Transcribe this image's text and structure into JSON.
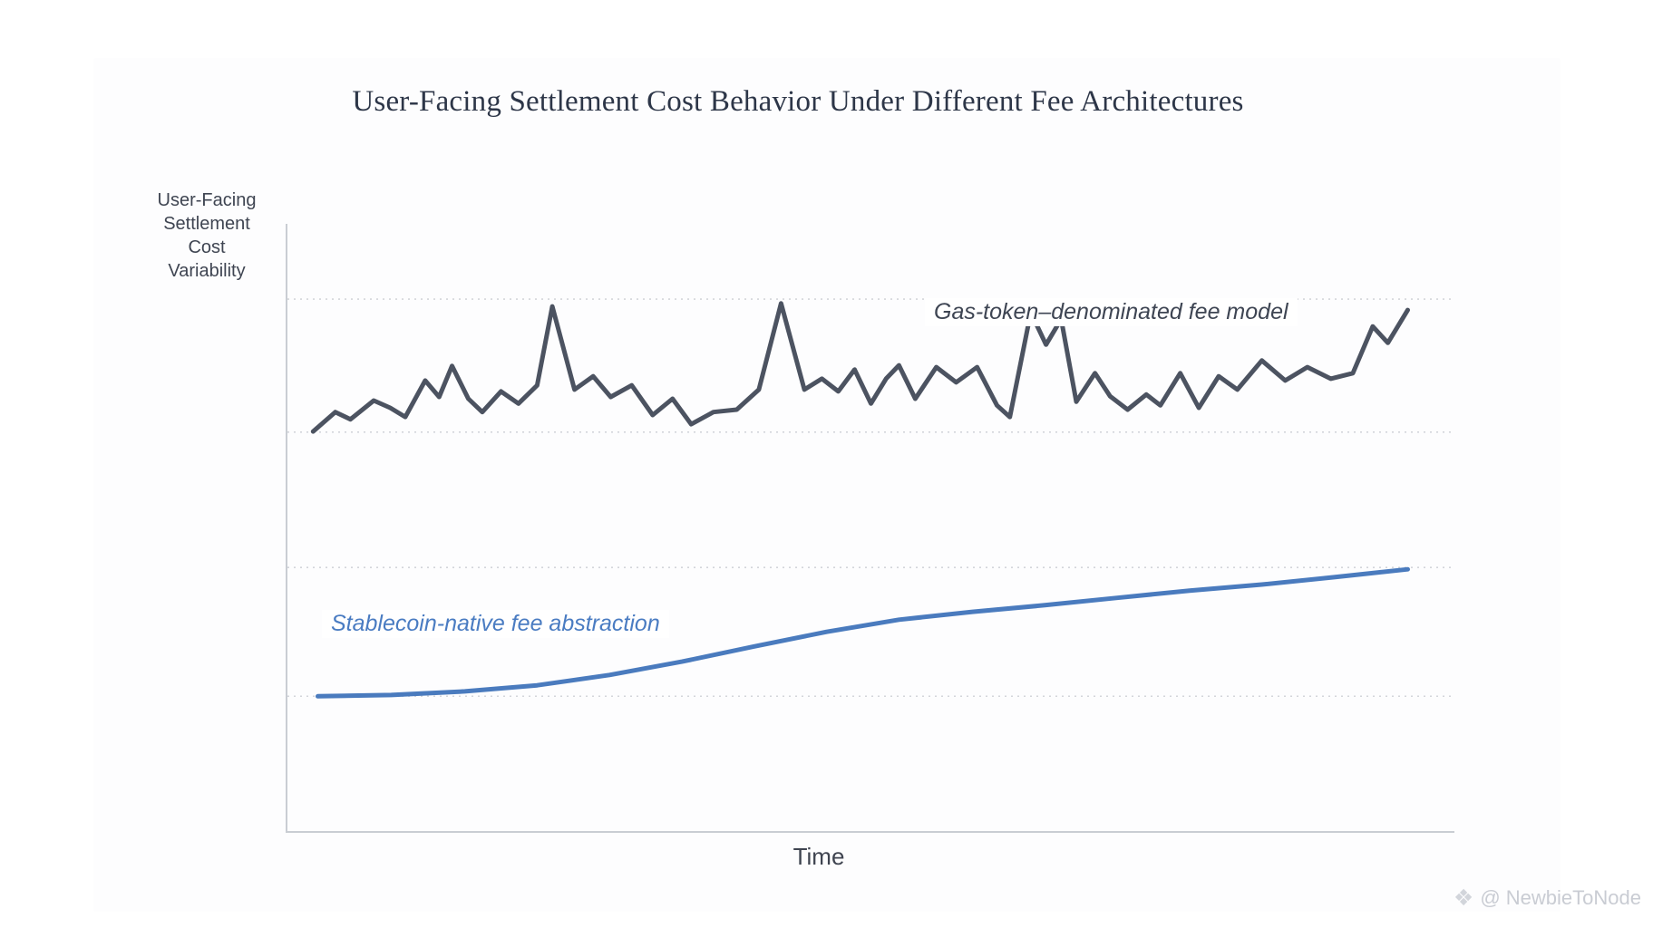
{
  "page": {
    "background_color": "#ffffff"
  },
  "chart_data": {
    "type": "line",
    "title": "User-Facing Settlement Cost Behavior Under Different Fee Architectures",
    "xlabel": "Time",
    "ylabel": "User-Facing Settlement Cost Variability",
    "ylabel_lines": [
      "User-Facing",
      "Settlement",
      "Cost",
      "Variability"
    ],
    "xlim": [
      0,
      100
    ],
    "ylim": [
      0,
      100
    ],
    "x_ticks": [],
    "y_ticks": [],
    "grid": {
      "style": "dotted",
      "color": "#d3d5da",
      "y_values": [
        22.2,
        43.4,
        65.7,
        87.6
      ]
    },
    "legend_position": "inline-annotations",
    "axis_color": "#c9cdd3",
    "series": [
      {
        "name": "Gas-token–denominated fee model",
        "color": "#4c5361",
        "style": "jagged",
        "points": [
          [
            2.2,
            65.8
          ],
          [
            4.1,
            69.0
          ],
          [
            5.4,
            67.8
          ],
          [
            7.4,
            70.9
          ],
          [
            8.8,
            69.7
          ],
          [
            10.1,
            68.2
          ],
          [
            11.8,
            74.2
          ],
          [
            13.0,
            71.5
          ],
          [
            14.1,
            76.6
          ],
          [
            15.5,
            71.2
          ],
          [
            16.7,
            69.0
          ],
          [
            18.3,
            72.4
          ],
          [
            19.8,
            70.4
          ],
          [
            21.4,
            73.4
          ],
          [
            22.7,
            86.4
          ],
          [
            24.6,
            72.7
          ],
          [
            26.2,
            74.9
          ],
          [
            27.7,
            71.5
          ],
          [
            29.5,
            73.4
          ],
          [
            31.3,
            68.5
          ],
          [
            33.0,
            71.2
          ],
          [
            34.6,
            67.0
          ],
          [
            36.5,
            69.0
          ],
          [
            38.5,
            69.4
          ],
          [
            40.4,
            72.7
          ],
          [
            42.3,
            86.9
          ],
          [
            44.3,
            72.7
          ],
          [
            45.8,
            74.5
          ],
          [
            47.2,
            72.4
          ],
          [
            48.6,
            76.0
          ],
          [
            50.0,
            70.4
          ],
          [
            51.3,
            74.5
          ],
          [
            52.4,
            76.7
          ],
          [
            53.8,
            71.2
          ],
          [
            55.6,
            76.4
          ],
          [
            57.3,
            73.9
          ],
          [
            59.1,
            76.4
          ],
          [
            60.8,
            70.1
          ],
          [
            61.9,
            68.2
          ],
          [
            63.7,
            85.4
          ],
          [
            65.0,
            80.1
          ],
          [
            66.3,
            84.3
          ],
          [
            67.6,
            70.7
          ],
          [
            69.2,
            75.4
          ],
          [
            70.5,
            71.6
          ],
          [
            72.0,
            69.4
          ],
          [
            73.6,
            71.9
          ],
          [
            74.8,
            70.1
          ],
          [
            76.5,
            75.4
          ],
          [
            78.1,
            69.7
          ],
          [
            79.8,
            74.9
          ],
          [
            81.4,
            72.7
          ],
          [
            83.5,
            77.5
          ],
          [
            85.5,
            74.2
          ],
          [
            87.4,
            76.4
          ],
          [
            89.4,
            74.5
          ],
          [
            91.3,
            75.4
          ],
          [
            93.0,
            83.1
          ],
          [
            94.3,
            80.4
          ],
          [
            96.0,
            85.8
          ]
        ]
      },
      {
        "name": "Stablecoin-native fee abstraction",
        "color": "#4a7bbe",
        "style": "smooth",
        "points": [
          [
            2.6,
            22.2
          ],
          [
            8.9,
            22.4
          ],
          [
            15.2,
            23.0
          ],
          [
            21.4,
            24.0
          ],
          [
            27.6,
            25.7
          ],
          [
            33.8,
            27.9
          ],
          [
            40.0,
            30.4
          ],
          [
            46.2,
            32.8
          ],
          [
            52.4,
            34.8
          ],
          [
            58.7,
            36.1
          ],
          [
            64.9,
            37.2
          ],
          [
            71.1,
            38.4
          ],
          [
            77.3,
            39.6
          ],
          [
            83.5,
            40.6
          ],
          [
            89.7,
            41.8
          ],
          [
            96.0,
            43.1
          ]
        ]
      }
    ]
  },
  "annotations": {
    "gas_label_color": "#3e4553",
    "stablecoin_label_color": "#4a7cc2"
  },
  "watermark": {
    "icon_glyph": "❖",
    "handle": "@ NewbieToNode"
  },
  "colors": {
    "title": "#2d3648",
    "axis_text": "#3f4552",
    "axis_line": "#c9cdd3",
    "gridline": "#d3d5da",
    "gas_line": "#4c5361",
    "stablecoin_line": "#4a7bbe",
    "watermark": "#c9ccd3"
  }
}
